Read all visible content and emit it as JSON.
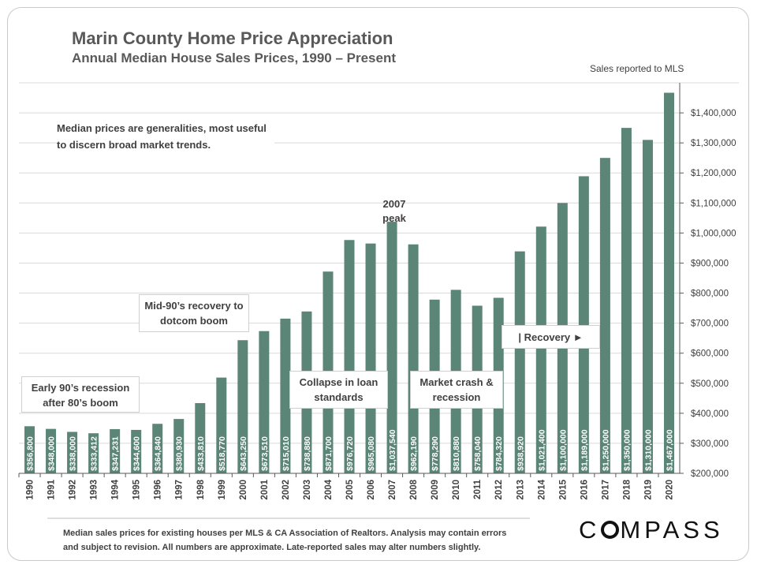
{
  "header": {
    "title": "Marin County Home Price Appreciation",
    "subtitle": "Annual Median House Sales Prices, 1990 – Present",
    "sales_note": "Sales reported to MLS"
  },
  "annotations": {
    "median_note": "Median prices are generalities, most useful to discern broad market trends.",
    "early_90s": "Early 90’s recession after 80’s boom",
    "mid_90s": "Mid-90’s recovery to dotcom boom",
    "collapse": "Collapse in loan standards",
    "peak_2007_line1": "2007",
    "peak_2007_line2": "peak",
    "market_crash": "Market crash & recession",
    "recovery": "| Recovery ►"
  },
  "footer": {
    "footnote_line1": "Median sales prices for existing houses per MLS & CA Association of Realtors. Analysis may contain errors",
    "footnote_line2": "and subject to revision. All numbers are approximate. Late-reported sales may alter numbers slightly.",
    "logo_prefix": "C",
    "logo_suffix": "MPASS"
  },
  "colors": {
    "bar": "#5b8576",
    "bar_label": "#ffffff",
    "grid": "#d9d9d9",
    "axis": "#595959",
    "text": "#404040"
  },
  "chart_data": {
    "type": "bar",
    "title": "Marin County Home Price Appreciation",
    "subtitle": "Annual Median House Sales Prices, 1990 – Present",
    "categories": [
      "1990",
      "1991",
      "1992",
      "1993",
      "1994",
      "1995",
      "1996",
      "1997",
      "1998",
      "1999",
      "2000",
      "2001",
      "2002",
      "2003",
      "2004",
      "2005",
      "2006",
      "2007",
      "2008",
      "2009",
      "2010",
      "2011",
      "2012",
      "2013",
      "2014",
      "2015",
      "2016",
      "2017",
      "2018",
      "2019",
      "2020"
    ],
    "values": [
      356800,
      348000,
      338000,
      333412,
      347231,
      344600,
      364840,
      380930,
      433810,
      518770,
      643250,
      673510,
      715010,
      738880,
      871700,
      976720,
      965080,
      1037540,
      962190,
      778290,
      810880,
      758040,
      784320,
      938920,
      1021400,
      1100000,
      1189000,
      1250000,
      1350000,
      1310000,
      1467000
    ],
    "value_labels": [
      "$356,800",
      "$348,000",
      "$338,000",
      "$333,412",
      "$347,231",
      "$344,600",
      "$364,840",
      "$380,930",
      "$433,810",
      "$518,770",
      "$643,250",
      "$673,510",
      "$715,010",
      "$738,880",
      "$871,700",
      "$976,720",
      "$965,080",
      "$1,037,540",
      "$962,190",
      "$778,290",
      "$810,880",
      "$758,040",
      "$784,320",
      "$938,920",
      "$1,021,400",
      "$1,100,000",
      "$1,189,000",
      "$1,250,000",
      "$1,350,000",
      "$1,310,000",
      "$1,467,000"
    ],
    "y_ticks": [
      200000,
      300000,
      400000,
      500000,
      600000,
      700000,
      800000,
      900000,
      1000000,
      1100000,
      1200000,
      1300000,
      1400000
    ],
    "y_tick_labels": [
      "$200,000",
      "$300,000",
      "$400,000",
      "$500,000",
      "$600,000",
      "$700,000",
      "$800,000",
      "$900,000",
      "$1,000,000",
      "$1,100,000",
      "$1,200,000",
      "$1,300,000",
      "$1,400,000"
    ],
    "ylim": [
      200000,
      1500000
    ],
    "y_axis_side": "right",
    "grid": true,
    "legend": "none"
  }
}
